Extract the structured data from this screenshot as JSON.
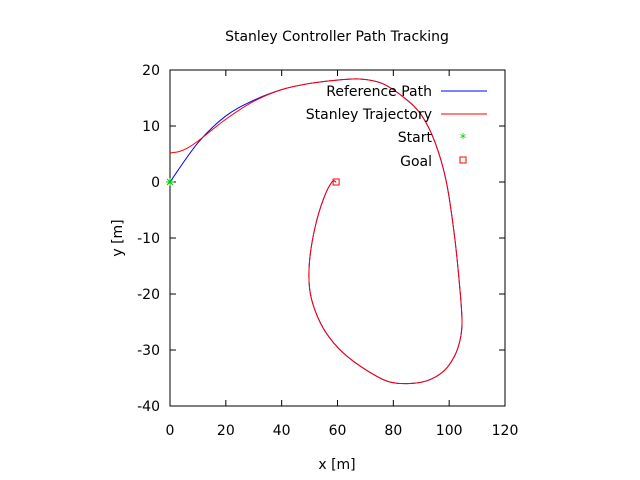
{
  "chart_data": {
    "type": "line",
    "title": "Stanley Controller Path Tracking",
    "xlabel": "x [m]",
    "ylabel": "y [m]",
    "xlim": [
      0,
      120
    ],
    "ylim": [
      -40,
      20
    ],
    "xticks": [
      "0",
      "20",
      "40",
      "60",
      "80",
      "100",
      "120"
    ],
    "yticks": [
      "-40",
      "-30",
      "-20",
      "-10",
      "0",
      "10",
      "20"
    ],
    "grid": false,
    "legend_position": "top-right",
    "series": [
      {
        "name": "Reference Path",
        "color": "#0000ff",
        "points": [
          [
            0,
            0
          ],
          [
            10,
            7
          ],
          [
            20,
            11.8
          ],
          [
            30,
            14.6
          ],
          [
            40,
            16.5
          ],
          [
            50,
            17.6
          ],
          [
            60,
            18.2
          ],
          [
            68,
            18.4
          ],
          [
            76,
            17.6
          ],
          [
            84,
            15
          ],
          [
            90,
            12
          ],
          [
            95,
            7
          ],
          [
            99,
            0
          ],
          [
            102,
            -10
          ],
          [
            104,
            -20
          ],
          [
            104.6,
            -25
          ],
          [
            104,
            -28
          ],
          [
            102,
            -31
          ],
          [
            98,
            -33.8
          ],
          [
            92,
            -35.5
          ],
          [
            85,
            -36
          ],
          [
            78,
            -35.6
          ],
          [
            70,
            -33.5
          ],
          [
            62,
            -30.5
          ],
          [
            56,
            -27
          ],
          [
            52,
            -23
          ],
          [
            50,
            -19
          ],
          [
            50,
            -14
          ],
          [
            52,
            -8
          ],
          [
            55,
            -3
          ],
          [
            58,
            0
          ],
          [
            59.5,
            0
          ]
        ]
      },
      {
        "name": "Stanley Trajectory",
        "color": "#ff0000",
        "points": [
          [
            0,
            5.2
          ],
          [
            3,
            5.4
          ],
          [
            6,
            6
          ],
          [
            10,
            7.3
          ],
          [
            20,
            11.2
          ],
          [
            30,
            14.4
          ],
          [
            40,
            16.5
          ],
          [
            50,
            17.6
          ],
          [
            60,
            18.2
          ],
          [
            68,
            18.4
          ],
          [
            76,
            17.6
          ],
          [
            84,
            15
          ],
          [
            90,
            12
          ],
          [
            95,
            7
          ],
          [
            99,
            0
          ],
          [
            102,
            -10
          ],
          [
            104,
            -20
          ],
          [
            104.6,
            -25
          ],
          [
            104,
            -28
          ],
          [
            102,
            -31
          ],
          [
            98,
            -33.8
          ],
          [
            92,
            -35.5
          ],
          [
            85,
            -36
          ],
          [
            78,
            -35.6
          ],
          [
            70,
            -33.5
          ],
          [
            62,
            -30.5
          ],
          [
            56,
            -27
          ],
          [
            52,
            -23
          ],
          [
            50,
            -19
          ],
          [
            50,
            -14
          ],
          [
            52,
            -8
          ],
          [
            55,
            -3
          ],
          [
            58,
            0
          ],
          [
            59.5,
            0
          ]
        ]
      }
    ],
    "markers": [
      {
        "name": "Start",
        "symbol": "*",
        "color": "#00cc00",
        "x": 0,
        "y": 0
      },
      {
        "name": "Goal",
        "symbol": "square",
        "color": "#ff0000",
        "x": 59.5,
        "y": 0
      }
    ]
  }
}
